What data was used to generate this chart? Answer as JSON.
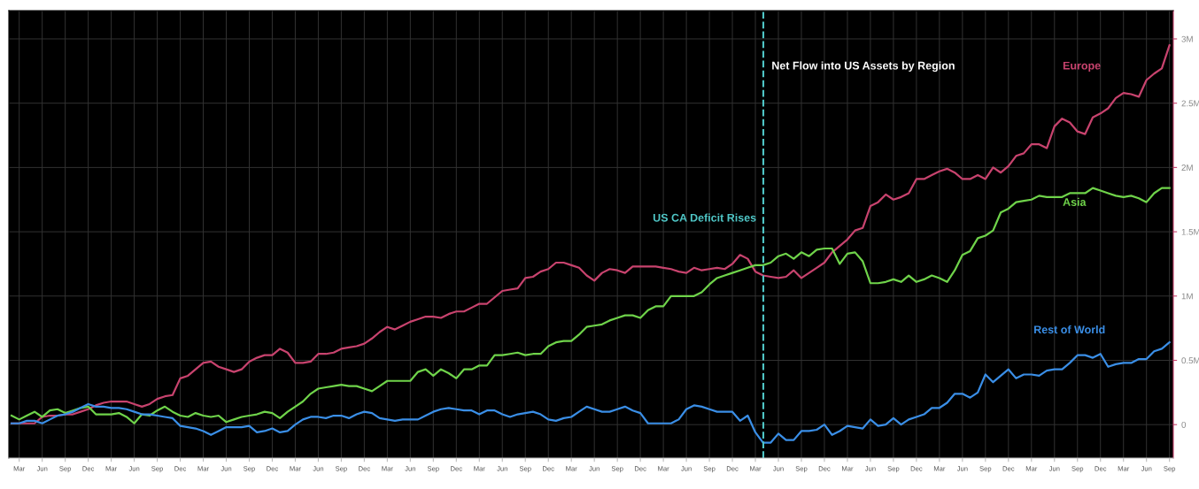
{
  "chart_data": {
    "type": "line",
    "title": "Net Flow into US Assets by Region",
    "categories": [
      null,
      "Mar",
      null,
      null,
      "Jun",
      null,
      null,
      "Sep",
      null,
      null,
      "Dec",
      null,
      null,
      "Mar",
      null,
      null,
      "Jun",
      null,
      null,
      "Sep",
      null,
      null,
      "Dec",
      null,
      null,
      "Mar",
      null,
      null,
      "Jun",
      null,
      null,
      "Sep",
      null,
      null,
      "Dec",
      null,
      null,
      "Mar",
      null,
      null,
      "Jun",
      null,
      null,
      "Sep",
      null,
      null,
      "Dec",
      null,
      null,
      "Mar",
      null,
      null,
      "Jun",
      null,
      null,
      "Sep",
      null,
      null,
      "Dec",
      null,
      null,
      "Mar",
      null,
      null,
      "Jun",
      null,
      null,
      "Sep",
      null,
      null,
      "Dec",
      null,
      null,
      "Mar",
      null,
      null,
      "Jun",
      null,
      null,
      "Sep",
      null,
      null,
      "Dec",
      null,
      null,
      "Mar",
      null,
      null,
      "Jun",
      null,
      null,
      "Sep",
      null,
      null,
      "Dec",
      null,
      null,
      "Mar",
      null,
      null,
      "Jun",
      null,
      null,
      "Sep",
      null,
      null,
      "Dec",
      null,
      null,
      "Mar",
      null,
      null,
      "Jun",
      null,
      null,
      "Sep",
      null,
      null,
      "Dec",
      null,
      null,
      "Mar",
      null,
      null,
      "Jun",
      null,
      null,
      "Sep",
      null,
      null,
      "Dec",
      null,
      null,
      "Mar",
      null,
      null,
      "Jun",
      null,
      null,
      "Sep",
      null,
      null,
      "Dec",
      null,
      null,
      "Mar",
      null,
      null,
      "Jun",
      null,
      null,
      "Sep"
    ],
    "ylim": [
      -0.26,
      3.22
    ],
    "yticks": [
      0,
      {
        "value": 0.5,
        "label": "0.5M"
      },
      {
        "value": 1,
        "label": "1M"
      },
      {
        "value": 1.5,
        "label": "1.5M"
      },
      {
        "value": 2,
        "label": "2M"
      },
      {
        "value": 2.5,
        "label": "2.5M"
      },
      {
        "value": 3,
        "label": "3M"
      }
    ],
    "grid": true,
    "line_style": "solid",
    "marker": "none",
    "annotations": [
      "US CA Deficit Rises"
    ],
    "series": [
      {
        "name": "Europe",
        "color": "#c8436e",
        "values": [
          0.01,
          0.01,
          0.01,
          0.01,
          0.06,
          0.07,
          0.07,
          0.08,
          0.08,
          0.1,
          0.12,
          0.15,
          0.17,
          0.18,
          0.18,
          0.18,
          0.16,
          0.14,
          0.16,
          0.2,
          0.22,
          0.23,
          0.36,
          0.38,
          0.43,
          0.48,
          0.49,
          0.45,
          0.43,
          0.41,
          0.43,
          0.49,
          0.52,
          0.54,
          0.54,
          0.59,
          0.56,
          0.48,
          0.48,
          0.49,
          0.55,
          0.55,
          0.56,
          0.59,
          0.6,
          0.61,
          0.63,
          0.67,
          0.72,
          0.76,
          0.74,
          0.77,
          0.8,
          0.82,
          0.84,
          0.84,
          0.83,
          0.86,
          0.88,
          0.88,
          0.91,
          0.94,
          0.94,
          0.99,
          1.04,
          1.05,
          1.06,
          1.14,
          1.15,
          1.19,
          1.21,
          1.26,
          1.26,
          1.24,
          1.22,
          1.16,
          1.12,
          1.18,
          1.21,
          1.2,
          1.18,
          1.23,
          1.23,
          1.23,
          1.23,
          1.22,
          1.21,
          1.19,
          1.18,
          1.22,
          1.2,
          1.21,
          1.22,
          1.21,
          1.25,
          1.32,
          1.29,
          1.19,
          1.16,
          1.15,
          1.14,
          1.15,
          1.2,
          1.14,
          1.18,
          1.22,
          1.26,
          1.34,
          1.39,
          1.44,
          1.51,
          1.53,
          1.7,
          1.73,
          1.79,
          1.75,
          1.77,
          1.8,
          1.91,
          1.91,
          1.94,
          1.97,
          1.99,
          1.96,
          1.91,
          1.91,
          1.94,
          1.91,
          2.0,
          1.96,
          2.01,
          2.09,
          2.11,
          2.18,
          2.18,
          2.15,
          2.32,
          2.38,
          2.35,
          2.28,
          2.26,
          2.39,
          2.42,
          2.46,
          2.54,
          2.58,
          2.57,
          2.55,
          2.68,
          2.73,
          2.77,
          2.95
        ]
      },
      {
        "name": "Asia",
        "color": "#6fd34a",
        "values": [
          0.07,
          0.04,
          0.07,
          0.1,
          0.06,
          0.11,
          0.12,
          0.09,
          0.11,
          0.13,
          0.14,
          0.08,
          0.08,
          0.08,
          0.09,
          0.06,
          0.01,
          0.08,
          0.07,
          0.11,
          0.14,
          0.1,
          0.07,
          0.06,
          0.09,
          0.07,
          0.06,
          0.07,
          0.02,
          0.04,
          0.06,
          0.07,
          0.08,
          0.1,
          0.09,
          0.05,
          0.1,
          0.14,
          0.18,
          0.24,
          0.28,
          0.29,
          0.3,
          0.31,
          0.3,
          0.3,
          0.28,
          0.26,
          0.3,
          0.34,
          0.34,
          0.34,
          0.34,
          0.41,
          0.43,
          0.38,
          0.43,
          0.4,
          0.36,
          0.43,
          0.43,
          0.46,
          0.46,
          0.54,
          0.54,
          0.55,
          0.56,
          0.54,
          0.55,
          0.55,
          0.61,
          0.64,
          0.65,
          0.65,
          0.7,
          0.76,
          0.77,
          0.78,
          0.81,
          0.83,
          0.85,
          0.85,
          0.83,
          0.89,
          0.92,
          0.92,
          1.0,
          1.0,
          1.0,
          1.0,
          1.03,
          1.09,
          1.14,
          1.16,
          1.18,
          1.2,
          1.22,
          1.24,
          1.24,
          1.26,
          1.31,
          1.33,
          1.29,
          1.34,
          1.31,
          1.36,
          1.37,
          1.37,
          1.25,
          1.33,
          1.34,
          1.27,
          1.1,
          1.1,
          1.11,
          1.13,
          1.11,
          1.16,
          1.11,
          1.13,
          1.16,
          1.14,
          1.11,
          1.2,
          1.32,
          1.35,
          1.45,
          1.47,
          1.51,
          1.65,
          1.68,
          1.73,
          1.74,
          1.75,
          1.78,
          1.77,
          1.77,
          1.77,
          1.8,
          1.8,
          1.8,
          1.84,
          1.82,
          1.8,
          1.78,
          1.77,
          1.78,
          1.76,
          1.73,
          1.8,
          1.84,
          1.84
        ]
      },
      {
        "name": "Rest of World",
        "color": "#3a8ee6",
        "values": [
          0.01,
          0.01,
          0.03,
          0.03,
          0.01,
          0.04,
          0.07,
          0.08,
          0.1,
          0.13,
          0.16,
          0.14,
          0.14,
          0.13,
          0.13,
          0.12,
          0.1,
          0.08,
          0.08,
          0.07,
          0.06,
          0.05,
          -0.01,
          -0.02,
          -0.03,
          -0.05,
          -0.08,
          -0.05,
          -0.02,
          -0.02,
          -0.02,
          -0.01,
          -0.06,
          -0.05,
          -0.03,
          -0.06,
          -0.05,
          0.0,
          0.04,
          0.06,
          0.06,
          0.05,
          0.07,
          0.07,
          0.05,
          0.08,
          0.1,
          0.09,
          0.05,
          0.04,
          0.03,
          0.04,
          0.04,
          0.04,
          0.07,
          0.1,
          0.12,
          0.13,
          0.12,
          0.11,
          0.11,
          0.08,
          0.11,
          0.11,
          0.08,
          0.06,
          0.08,
          0.09,
          0.1,
          0.08,
          0.04,
          0.03,
          0.05,
          0.06,
          0.1,
          0.14,
          0.12,
          0.1,
          0.1,
          0.12,
          0.14,
          0.11,
          0.09,
          0.01,
          0.01,
          0.01,
          0.01,
          0.04,
          0.12,
          0.15,
          0.14,
          0.12,
          0.1,
          0.1,
          0.1,
          0.03,
          0.07,
          -0.06,
          -0.14,
          -0.14,
          -0.07,
          -0.12,
          -0.12,
          -0.05,
          -0.05,
          -0.04,
          0.0,
          -0.08,
          -0.05,
          -0.01,
          -0.02,
          -0.03,
          0.04,
          -0.01,
          0.0,
          0.05,
          0.0,
          0.04,
          0.06,
          0.08,
          0.13,
          0.13,
          0.17,
          0.24,
          0.24,
          0.21,
          0.25,
          0.39,
          0.33,
          0.38,
          0.43,
          0.36,
          0.39,
          0.39,
          0.38,
          0.42,
          0.43,
          0.43,
          0.48,
          0.54,
          0.54,
          0.52,
          0.55,
          0.45,
          0.47,
          0.48,
          0.48,
          0.51,
          0.51,
          0.57,
          0.59,
          0.64
        ]
      }
    ]
  }
}
